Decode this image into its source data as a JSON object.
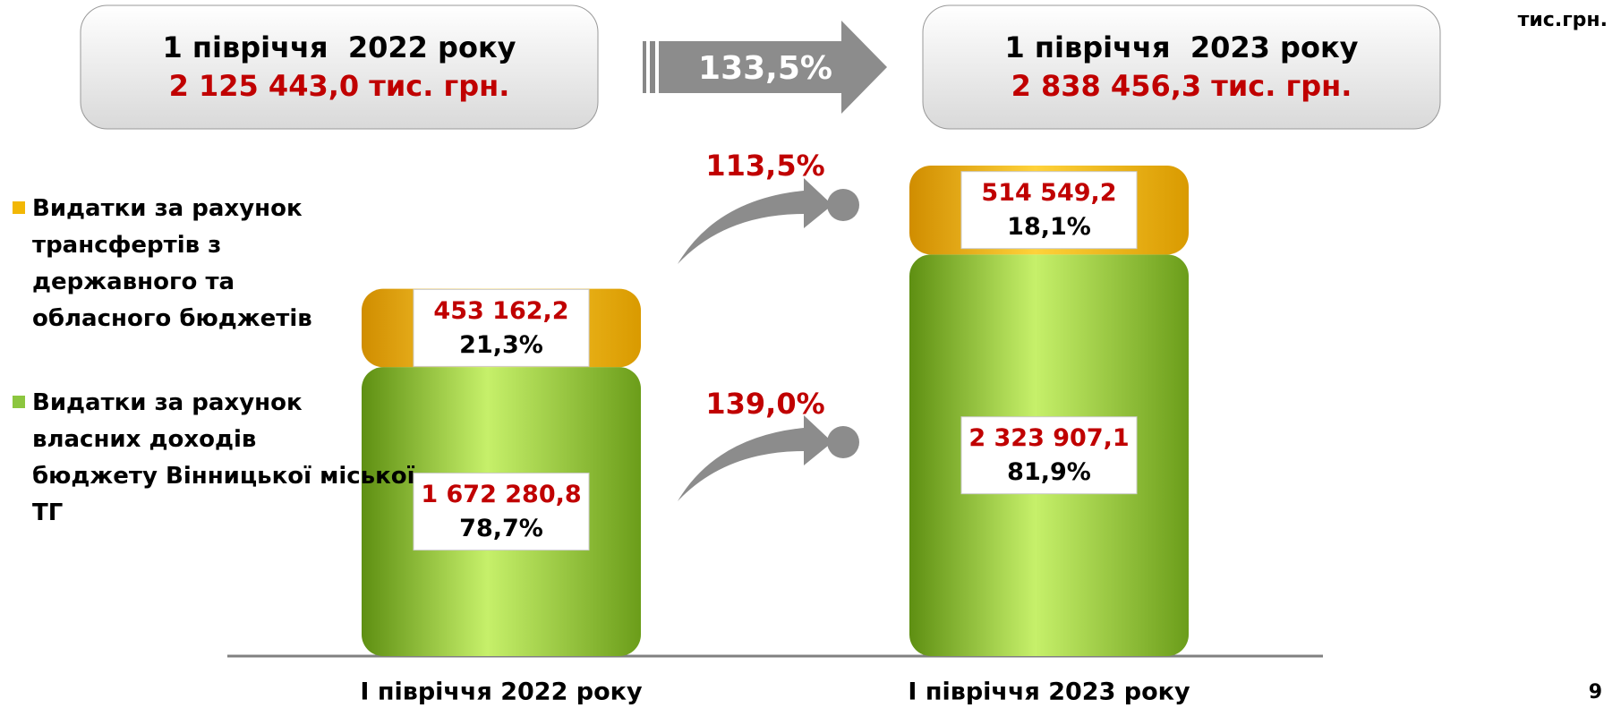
{
  "header": {
    "left": {
      "title": "1 півріччя  2022 року",
      "total": "2 125 443,0 тис. грн."
    },
    "growth": "133,5%",
    "right": {
      "title": "1 півріччя  2023 року",
      "total": "2 838 456,3 тис. грн."
    }
  },
  "unit": "тис.грн.",
  "page_number": "9",
  "chart_data": {
    "type": "bar",
    "stacked": true,
    "categories": [
      "І півріччя 2022 року",
      "І півріччя 2023 року"
    ],
    "series": [
      {
        "name": "Видатки за рахунок трансфертів з державного та обласного бюджетів",
        "color": "#f2b705",
        "values": [
          453162.2,
          514549.2
        ],
        "value_labels": [
          "453 162,2",
          "514 549,2"
        ],
        "share_labels": [
          "21,3%",
          "18,1%"
        ],
        "growth_label": "113,5%"
      },
      {
        "name": "Видатки за рахунок власних доходів бюджету Вінницької міської ТГ",
        "color": "#8cc63f",
        "values": [
          1672280.8,
          2323907.1
        ],
        "value_labels": [
          "1 672 280,8",
          "2 323 907,1"
        ],
        "share_labels": [
          "78,7%",
          "81,9%"
        ],
        "growth_label": "139,0%"
      }
    ]
  }
}
